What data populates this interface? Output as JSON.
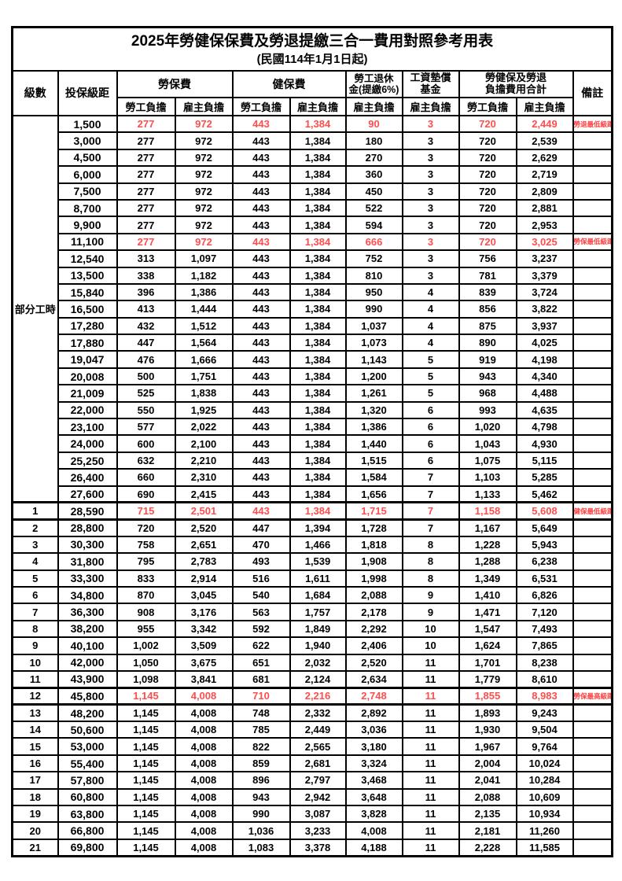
{
  "title": {
    "line1": "2025年勞健保保費及勞退提繳三合一費用對照參考用表",
    "line2": "(民國114年1月1日起)"
  },
  "colors": {
    "employee_col_bg": "#FAC090",
    "employer_col_bg": "#DBD6EE",
    "highlight_value_text": "#FF4D4D",
    "remark_text": "#FF4040",
    "border": "#000000"
  },
  "table": {
    "headers": {
      "level": "級數",
      "salary": "投保級距",
      "labor_insurance": "勞保費",
      "health_insurance": "健保費",
      "pension": "勞工退休\n金(提繳6%)",
      "wage_fund": "工資墊償\n基金",
      "total": "勞健保及勞退\n負擔費用合計",
      "remark": "備註",
      "employee": "勞工負擔",
      "employer": "雇主負擔"
    },
    "part_time_label": "部分工時",
    "part_time_rowspan": 23,
    "rows": [
      {
        "sal": "1,500",
        "v": [
          "277",
          "972",
          "443",
          "1,384",
          "90",
          "3",
          "720",
          "2,449"
        ],
        "rm": "勞退最低級距",
        "red": true
      },
      {
        "sal": "3,000",
        "v": [
          "277",
          "972",
          "443",
          "1,384",
          "180",
          "3",
          "720",
          "2,539"
        ]
      },
      {
        "sal": "4,500",
        "v": [
          "277",
          "972",
          "443",
          "1,384",
          "270",
          "3",
          "720",
          "2,629"
        ]
      },
      {
        "sal": "6,000",
        "v": [
          "277",
          "972",
          "443",
          "1,384",
          "360",
          "3",
          "720",
          "2,719"
        ]
      },
      {
        "sal": "7,500",
        "v": [
          "277",
          "972",
          "443",
          "1,384",
          "450",
          "3",
          "720",
          "2,809"
        ]
      },
      {
        "sal": "8,700",
        "v": [
          "277",
          "972",
          "443",
          "1,384",
          "522",
          "3",
          "720",
          "2,881"
        ]
      },
      {
        "sal": "9,900",
        "v": [
          "277",
          "972",
          "443",
          "1,384",
          "594",
          "3",
          "720",
          "2,953"
        ]
      },
      {
        "sal": "11,100",
        "v": [
          "277",
          "972",
          "443",
          "1,384",
          "666",
          "3",
          "720",
          "3,025"
        ],
        "rm": "勞保最低級距",
        "red": true
      },
      {
        "sal": "12,540",
        "v": [
          "313",
          "1,097",
          "443",
          "1,384",
          "752",
          "3",
          "756",
          "3,237"
        ]
      },
      {
        "sal": "13,500",
        "v": [
          "338",
          "1,182",
          "443",
          "1,384",
          "810",
          "3",
          "781",
          "3,379"
        ]
      },
      {
        "sal": "15,840",
        "v": [
          "396",
          "1,386",
          "443",
          "1,384",
          "950",
          "4",
          "839",
          "3,724"
        ]
      },
      {
        "sal": "16,500",
        "v": [
          "413",
          "1,444",
          "443",
          "1,384",
          "990",
          "4",
          "856",
          "3,822"
        ]
      },
      {
        "sal": "17,280",
        "v": [
          "432",
          "1,512",
          "443",
          "1,384",
          "1,037",
          "4",
          "875",
          "3,937"
        ]
      },
      {
        "sal": "17,880",
        "v": [
          "447",
          "1,564",
          "443",
          "1,384",
          "1,073",
          "4",
          "890",
          "4,025"
        ]
      },
      {
        "sal": "19,047",
        "v": [
          "476",
          "1,666",
          "443",
          "1,384",
          "1,143",
          "5",
          "919",
          "4,198"
        ]
      },
      {
        "sal": "20,008",
        "v": [
          "500",
          "1,751",
          "443",
          "1,384",
          "1,200",
          "5",
          "943",
          "4,340"
        ]
      },
      {
        "sal": "21,009",
        "v": [
          "525",
          "1,838",
          "443",
          "1,384",
          "1,261",
          "5",
          "968",
          "4,488"
        ]
      },
      {
        "sal": "22,000",
        "v": [
          "550",
          "1,925",
          "443",
          "1,384",
          "1,320",
          "6",
          "993",
          "4,635"
        ]
      },
      {
        "sal": "23,100",
        "v": [
          "577",
          "2,022",
          "443",
          "1,384",
          "1,386",
          "6",
          "1,020",
          "4,798"
        ]
      },
      {
        "sal": "24,000",
        "v": [
          "600",
          "2,100",
          "443",
          "1,384",
          "1,440",
          "6",
          "1,043",
          "4,930"
        ]
      },
      {
        "sal": "25,250",
        "v": [
          "632",
          "2,210",
          "443",
          "1,384",
          "1,515",
          "6",
          "1,075",
          "5,115"
        ]
      },
      {
        "sal": "26,400",
        "v": [
          "660",
          "2,310",
          "443",
          "1,384",
          "1,584",
          "7",
          "1,103",
          "5,285"
        ]
      },
      {
        "sal": "27,600",
        "v": [
          "690",
          "2,415",
          "443",
          "1,384",
          "1,656",
          "7",
          "1,133",
          "5,462"
        ]
      },
      {
        "lv": "1",
        "sal": "28,590",
        "v": [
          "715",
          "2,501",
          "443",
          "1,384",
          "1,715",
          "7",
          "1,158",
          "5,608"
        ],
        "rm": "健保最低級距",
        "red": true,
        "thick": true
      },
      {
        "lv": "2",
        "sal": "28,800",
        "v": [
          "720",
          "2,520",
          "447",
          "1,394",
          "1,728",
          "7",
          "1,167",
          "5,649"
        ]
      },
      {
        "lv": "3",
        "sal": "30,300",
        "v": [
          "758",
          "2,651",
          "470",
          "1,466",
          "1,818",
          "8",
          "1,228",
          "5,943"
        ]
      },
      {
        "lv": "4",
        "sal": "31,800",
        "v": [
          "795",
          "2,783",
          "493",
          "1,539",
          "1,908",
          "8",
          "1,288",
          "6,238"
        ]
      },
      {
        "lv": "5",
        "sal": "33,300",
        "v": [
          "833",
          "2,914",
          "516",
          "1,611",
          "1,998",
          "8",
          "1,349",
          "6,531"
        ]
      },
      {
        "lv": "6",
        "sal": "34,800",
        "v": [
          "870",
          "3,045",
          "540",
          "1,684",
          "2,088",
          "9",
          "1,410",
          "6,826"
        ]
      },
      {
        "lv": "7",
        "sal": "36,300",
        "v": [
          "908",
          "3,176",
          "563",
          "1,757",
          "2,178",
          "9",
          "1,471",
          "7,120"
        ]
      },
      {
        "lv": "8",
        "sal": "38,200",
        "v": [
          "955",
          "3,342",
          "592",
          "1,849",
          "2,292",
          "10",
          "1,547",
          "7,493"
        ]
      },
      {
        "lv": "9",
        "sal": "40,100",
        "v": [
          "1,002",
          "3,509",
          "622",
          "1,940",
          "2,406",
          "10",
          "1,624",
          "7,865"
        ]
      },
      {
        "lv": "10",
        "sal": "42,000",
        "v": [
          "1,050",
          "3,675",
          "651",
          "2,032",
          "2,520",
          "11",
          "1,701",
          "8,238"
        ]
      },
      {
        "lv": "11",
        "sal": "43,900",
        "v": [
          "1,098",
          "3,841",
          "681",
          "2,124",
          "2,634",
          "11",
          "1,779",
          "8,610"
        ]
      },
      {
        "lv": "12",
        "sal": "45,800",
        "v": [
          "1,145",
          "4,008",
          "710",
          "2,216",
          "2,748",
          "11",
          "1,855",
          "8,983"
        ],
        "rm": "勞保最高級距",
        "red": true,
        "thick": true
      },
      {
        "lv": "13",
        "sal": "48,200",
        "v": [
          "1,145",
          "4,008",
          "748",
          "2,332",
          "2,892",
          "11",
          "1,893",
          "9,243"
        ]
      },
      {
        "lv": "14",
        "sal": "50,600",
        "v": [
          "1,145",
          "4,008",
          "785",
          "2,449",
          "3,036",
          "11",
          "1,930",
          "9,504"
        ]
      },
      {
        "lv": "15",
        "sal": "53,000",
        "v": [
          "1,145",
          "4,008",
          "822",
          "2,565",
          "3,180",
          "11",
          "1,967",
          "9,764"
        ]
      },
      {
        "lv": "16",
        "sal": "55,400",
        "v": [
          "1,145",
          "4,008",
          "859",
          "2,681",
          "3,324",
          "11",
          "2,004",
          "10,024"
        ]
      },
      {
        "lv": "17",
        "sal": "57,800",
        "v": [
          "1,145",
          "4,008",
          "896",
          "2,797",
          "3,468",
          "11",
          "2,041",
          "10,284"
        ]
      },
      {
        "lv": "18",
        "sal": "60,800",
        "v": [
          "1,145",
          "4,008",
          "943",
          "2,942",
          "3,648",
          "11",
          "2,088",
          "10,609"
        ]
      },
      {
        "lv": "19",
        "sal": "63,800",
        "v": [
          "1,145",
          "4,008",
          "990",
          "3,087",
          "3,828",
          "11",
          "2,135",
          "10,934"
        ]
      },
      {
        "lv": "20",
        "sal": "66,800",
        "v": [
          "1,145",
          "4,008",
          "1,036",
          "3,233",
          "4,008",
          "11",
          "2,181",
          "11,260"
        ]
      },
      {
        "lv": "21",
        "sal": "69,800",
        "v": [
          "1,145",
          "4,008",
          "1,083",
          "3,378",
          "4,188",
          "11",
          "2,228",
          "11,585"
        ]
      }
    ]
  }
}
